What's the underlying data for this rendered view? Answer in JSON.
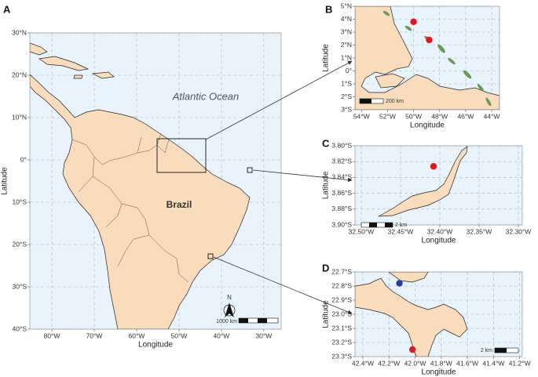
{
  "panels": [
    {
      "label": "A",
      "xlabel": "Longitude",
      "ylabel": "Latitude",
      "xlim": [
        -85.2,
        -25.9
      ],
      "ylim": [
        -40,
        30
      ],
      "xticks": [
        {
          "value": -80,
          "label": "80°W"
        },
        {
          "value": -70,
          "label": "70°W"
        },
        {
          "value": -60,
          "label": "60°W"
        },
        {
          "value": -50,
          "label": "50°W"
        },
        {
          "value": -40,
          "label": "40°W"
        },
        {
          "value": -30,
          "label": "30°W"
        }
      ],
      "yticks": [
        {
          "value": 30,
          "label": "30°N"
        },
        {
          "value": 20,
          "label": "20°N"
        },
        {
          "value": 10,
          "label": "10°N"
        },
        {
          "value": 0,
          "label": "0°"
        },
        {
          "value": -10,
          "label": "10°S"
        },
        {
          "value": -20,
          "label": "20°S"
        },
        {
          "value": -30,
          "label": "30°S"
        },
        {
          "value": -40,
          "label": "40°S"
        }
      ],
      "ocean_label": "Atlantic Ocean",
      "country_label": "Brazil",
      "north": "N",
      "scalebar": "1000 km",
      "points": []
    },
    {
      "label": "B",
      "xlabel": "Longitude",
      "ylabel": "Latitude",
      "xlim": [
        -54.5,
        -43.4
      ],
      "ylim": [
        -3,
        5
      ],
      "xticks": [
        {
          "value": -54,
          "label": "54°W"
        },
        {
          "value": -52,
          "label": "52°W"
        },
        {
          "value": -50,
          "label": "50°W"
        },
        {
          "value": -48,
          "label": "48°W"
        },
        {
          "value": -46,
          "label": "46°W"
        },
        {
          "value": -44,
          "label": "44°W"
        }
      ],
      "yticks": [
        {
          "value": 5,
          "label": "5°N"
        },
        {
          "value": 4,
          "label": "4°N"
        },
        {
          "value": 3,
          "label": "3°N"
        },
        {
          "value": 2,
          "label": "2°N"
        },
        {
          "value": 1,
          "label": "1°N"
        },
        {
          "value": 0,
          "label": "0°"
        },
        {
          "value": -1,
          "label": "1°S"
        },
        {
          "value": -2,
          "label": "2°S"
        },
        {
          "value": -3,
          "label": "3°S"
        }
      ],
      "scalebar": "200 km",
      "points": [
        {
          "lon": -50.0,
          "lat": 3.8,
          "color": "#e8141c"
        },
        {
          "lon": -48.8,
          "lat": 2.4,
          "color": "#e8141c"
        }
      ]
    },
    {
      "label": "C",
      "xlabel": "Longitude",
      "ylabel": "Latitude",
      "xlim": [
        -32.508,
        -32.295
      ],
      "ylim": [
        -3.9,
        -3.8
      ],
      "xticks": [
        {
          "value": -32.5,
          "label": "32.50°W"
        },
        {
          "value": -32.45,
          "label": "32.45°W"
        },
        {
          "value": -32.4,
          "label": "32.40°W"
        },
        {
          "value": -32.35,
          "label": "32.35°W"
        },
        {
          "value": -32.3,
          "label": "32.30°W"
        }
      ],
      "yticks": [
        {
          "value": -3.8,
          "label": "3.80°S"
        },
        {
          "value": -3.82,
          "label": "3.82°S"
        },
        {
          "value": -3.84,
          "label": "3.84°S"
        },
        {
          "value": -3.86,
          "label": "3.86°S"
        },
        {
          "value": -3.88,
          "label": "3.88°S"
        },
        {
          "value": -3.9,
          "label": "3.90°S"
        }
      ],
      "scalebar": "2 km",
      "points": [
        {
          "lon": -32.408,
          "lat": -3.826,
          "color": "#e8141c"
        }
      ]
    },
    {
      "label": "D",
      "xlabel": "Longitude",
      "ylabel": "Latitude",
      "xlim": [
        -42.46,
        -41.18
      ],
      "ylim": [
        -23.3,
        -22.7
      ],
      "xticks": [
        {
          "value": -42.4,
          "label": "42.4°W"
        },
        {
          "value": -42.2,
          "label": "42.2°W"
        },
        {
          "value": -42.0,
          "label": "42.0°W"
        },
        {
          "value": -41.8,
          "label": "41.8°W"
        },
        {
          "value": -41.6,
          "label": "41.6°W"
        },
        {
          "value": -41.4,
          "label": "41.4°W"
        },
        {
          "value": -41.2,
          "label": "41.2°W"
        }
      ],
      "yticks": [
        {
          "value": -22.7,
          "label": "22.7°S"
        },
        {
          "value": -22.8,
          "label": "22.8°S"
        },
        {
          "value": -22.9,
          "label": "22.9°S"
        },
        {
          "value": -23.0,
          "label": "23.0°S"
        },
        {
          "value": -23.1,
          "label": "23.1°S"
        },
        {
          "value": -23.2,
          "label": "23.2°S"
        },
        {
          "value": -23.3,
          "label": "23.3°S"
        }
      ],
      "scalebar": "2 km",
      "points": [
        {
          "lon": -42.12,
          "lat": -22.78,
          "color": "#2a3aa8"
        },
        {
          "lon": -42.02,
          "lat": -23.25,
          "color": "#e8141c"
        }
      ]
    }
  ]
}
